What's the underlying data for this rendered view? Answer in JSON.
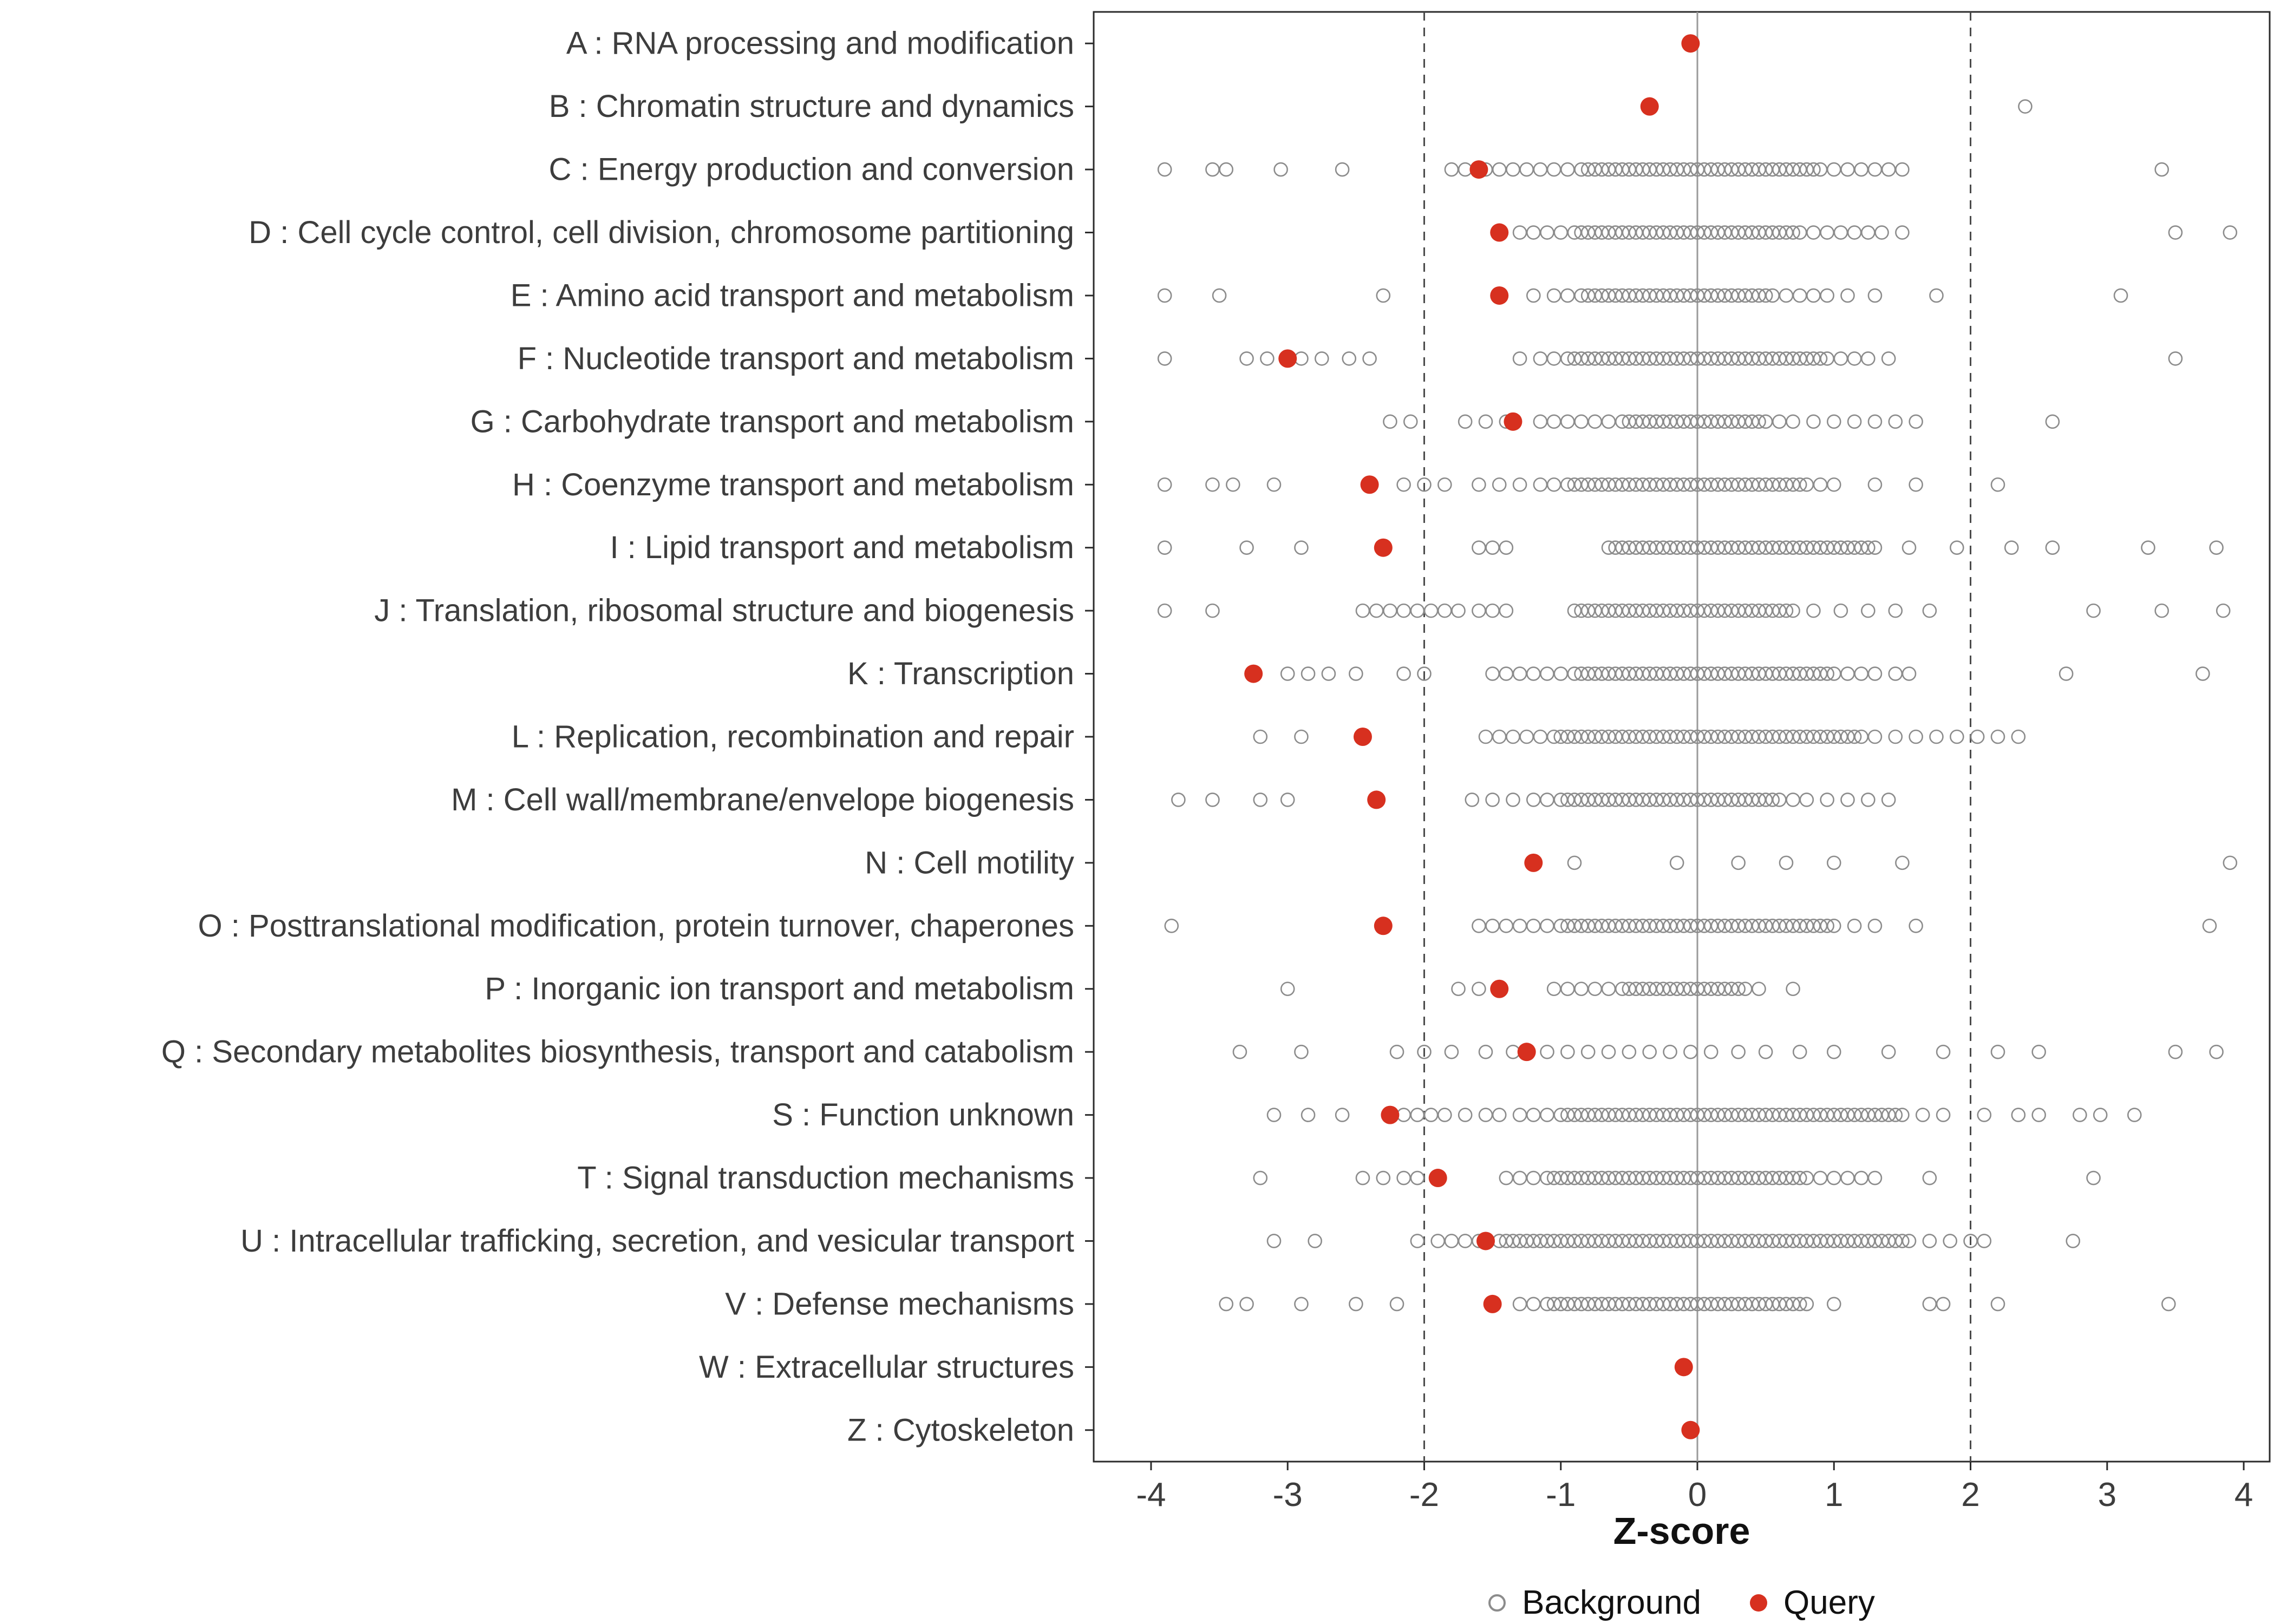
{
  "chart_data": {
    "type": "scatter",
    "variant": "strip-plot",
    "title": "",
    "xlabel": "Z-score",
    "xlim": [
      -4.42,
      4.19
    ],
    "xticks": [
      -4,
      -3,
      -2,
      -1,
      0,
      1,
      2,
      3,
      4
    ],
    "grid": false,
    "reference_lines": {
      "solid": [
        0
      ],
      "dashed": [
        -2,
        2
      ]
    },
    "colors": {
      "background_point": "#8c8c8c",
      "query_point": "#d7301f",
      "axis_text": "#3d3d3d",
      "panel_border": "#2b2b2b",
      "zero_line": "#9a9a9a",
      "dashed_line": "#4a4a4a"
    },
    "legend": {
      "position": "bottom",
      "items": [
        {
          "label": "Background",
          "marker": "open-circle",
          "color": "#8c8c8c"
        },
        {
          "label": "Query",
          "marker": "filled-circle",
          "color": "#d7301f"
        }
      ]
    },
    "categories": [
      {
        "label": "A : RNA processing and modification",
        "query": -0.05,
        "background": []
      },
      {
        "label": "B : Chromatin structure and dynamics",
        "query": -0.35,
        "background": [
          2.4
        ]
      },
      {
        "label": "C : Energy production and conversion",
        "query": -1.6,
        "background": [
          -3.9,
          -3.55,
          -3.45,
          -3.05,
          -2.6,
          -1.8,
          -1.7,
          -1.55,
          -1.45,
          -1.35,
          -1.25,
          -1.15,
          -1.05,
          -0.95,
          -0.85,
          -0.8,
          -0.75,
          -0.7,
          -0.65,
          -0.6,
          -0.55,
          -0.5,
          -0.45,
          -0.4,
          -0.35,
          -0.3,
          -0.25,
          -0.2,
          -0.15,
          -0.1,
          -0.05,
          0,
          0.05,
          0.1,
          0.15,
          0.2,
          0.25,
          0.3,
          0.35,
          0.4,
          0.45,
          0.5,
          0.55,
          0.6,
          0.65,
          0.7,
          0.75,
          0.8,
          0.85,
          0.9,
          1.0,
          1.1,
          1.2,
          1.3,
          1.4,
          1.5,
          3.4
        ]
      },
      {
        "label": "D : Cell cycle control, cell division, chromosome partitioning",
        "query": -1.45,
        "background": [
          -1.3,
          -1.2,
          -1.1,
          -1.0,
          -0.9,
          -0.85,
          -0.8,
          -0.75,
          -0.7,
          -0.65,
          -0.6,
          -0.55,
          -0.5,
          -0.45,
          -0.4,
          -0.35,
          -0.3,
          -0.25,
          -0.2,
          -0.15,
          -0.1,
          -0.05,
          0,
          0.05,
          0.1,
          0.15,
          0.2,
          0.25,
          0.3,
          0.35,
          0.4,
          0.45,
          0.5,
          0.55,
          0.6,
          0.65,
          0.7,
          0.75,
          0.85,
          0.95,
          1.05,
          1.15,
          1.25,
          1.35,
          1.5,
          3.5,
          3.9
        ]
      },
      {
        "label": "E : Amino acid transport and metabolism",
        "query": -1.45,
        "background": [
          -3.9,
          -3.5,
          -2.3,
          -1.2,
          -1.05,
          -0.95,
          -0.85,
          -0.8,
          -0.75,
          -0.7,
          -0.65,
          -0.6,
          -0.55,
          -0.5,
          -0.45,
          -0.4,
          -0.35,
          -0.3,
          -0.25,
          -0.2,
          -0.15,
          -0.1,
          -0.05,
          0,
          0.05,
          0.1,
          0.15,
          0.2,
          0.25,
          0.3,
          0.35,
          0.4,
          0.45,
          0.5,
          0.55,
          0.65,
          0.75,
          0.85,
          0.95,
          1.1,
          1.3,
          1.75,
          3.1
        ]
      },
      {
        "label": "F : Nucleotide transport and metabolism",
        "query": -3.0,
        "background": [
          -3.9,
          -3.3,
          -3.15,
          -2.9,
          -2.75,
          -2.55,
          -2.4,
          -1.3,
          -1.15,
          -1.05,
          -0.95,
          -0.9,
          -0.85,
          -0.8,
          -0.75,
          -0.7,
          -0.65,
          -0.6,
          -0.55,
          -0.5,
          -0.45,
          -0.4,
          -0.35,
          -0.3,
          -0.25,
          -0.2,
          -0.15,
          -0.1,
          -0.05,
          0,
          0.05,
          0.1,
          0.15,
          0.2,
          0.25,
          0.3,
          0.35,
          0.4,
          0.45,
          0.5,
          0.55,
          0.6,
          0.65,
          0.7,
          0.75,
          0.8,
          0.85,
          0.9,
          0.95,
          1.05,
          1.15,
          1.25,
          1.4,
          3.5
        ]
      },
      {
        "label": "G : Carbohydrate transport and metabolism",
        "query": -1.35,
        "background": [
          -2.25,
          -2.1,
          -1.7,
          -1.55,
          -1.4,
          -1.15,
          -1.05,
          -0.95,
          -0.85,
          -0.75,
          -0.65,
          -0.55,
          -0.5,
          -0.45,
          -0.4,
          -0.35,
          -0.3,
          -0.25,
          -0.2,
          -0.15,
          -0.1,
          -0.05,
          0,
          0.05,
          0.1,
          0.15,
          0.2,
          0.25,
          0.3,
          0.35,
          0.4,
          0.45,
          0.5,
          0.6,
          0.7,
          0.85,
          1.0,
          1.15,
          1.3,
          1.45,
          1.6,
          2.6
        ]
      },
      {
        "label": "H : Coenzyme transport and metabolism",
        "query": -2.4,
        "background": [
          -3.9,
          -3.55,
          -3.4,
          -3.1,
          -2.15,
          -2.0,
          -1.85,
          -1.6,
          -1.45,
          -1.3,
          -1.15,
          -1.05,
          -0.95,
          -0.9,
          -0.85,
          -0.8,
          -0.75,
          -0.7,
          -0.65,
          -0.6,
          -0.55,
          -0.5,
          -0.45,
          -0.4,
          -0.35,
          -0.3,
          -0.25,
          -0.2,
          -0.15,
          -0.1,
          -0.05,
          0,
          0.05,
          0.1,
          0.15,
          0.2,
          0.25,
          0.3,
          0.35,
          0.4,
          0.45,
          0.5,
          0.55,
          0.6,
          0.65,
          0.7,
          0.75,
          0.8,
          0.9,
          1.0,
          1.3,
          1.6,
          2.2
        ]
      },
      {
        "label": "I : Lipid transport and metabolism",
        "query": -2.3,
        "background": [
          -3.9,
          -3.3,
          -2.9,
          -1.6,
          -1.5,
          -1.4,
          -0.65,
          -0.6,
          -0.55,
          -0.5,
          -0.45,
          -0.4,
          -0.35,
          -0.3,
          -0.25,
          -0.2,
          -0.15,
          -0.1,
          -0.05,
          0,
          0.05,
          0.1,
          0.15,
          0.2,
          0.25,
          0.3,
          0.35,
          0.4,
          0.45,
          0.5,
          0.55,
          0.6,
          0.65,
          0.7,
          0.75,
          0.8,
          0.85,
          0.9,
          0.95,
          1.0,
          1.05,
          1.1,
          1.15,
          1.2,
          1.25,
          1.3,
          1.55,
          1.9,
          2.3,
          2.6,
          3.3,
          3.8
        ]
      },
      {
        "label": "J : Translation, ribosomal structure and biogenesis",
        "query": null,
        "background": [
          -3.9,
          -3.55,
          -2.45,
          -2.35,
          -2.25,
          -2.15,
          -2.05,
          -1.95,
          -1.85,
          -1.75,
          -1.6,
          -1.5,
          -1.4,
          -0.9,
          -0.85,
          -0.8,
          -0.75,
          -0.7,
          -0.65,
          -0.6,
          -0.55,
          -0.5,
          -0.45,
          -0.4,
          -0.35,
          -0.3,
          -0.25,
          -0.2,
          -0.15,
          -0.1,
          -0.05,
          0,
          0.05,
          0.1,
          0.15,
          0.2,
          0.25,
          0.3,
          0.35,
          0.4,
          0.45,
          0.5,
          0.55,
          0.6,
          0.65,
          0.7,
          0.85,
          1.05,
          1.25,
          1.45,
          1.7,
          2.9,
          3.4,
          3.85
        ]
      },
      {
        "label": "K : Transcription",
        "query": -3.25,
        "background": [
          -3.0,
          -2.85,
          -2.7,
          -2.5,
          -2.15,
          -2.0,
          -1.5,
          -1.4,
          -1.3,
          -1.2,
          -1.1,
          -1.0,
          -0.9,
          -0.85,
          -0.8,
          -0.75,
          -0.7,
          -0.65,
          -0.6,
          -0.55,
          -0.5,
          -0.45,
          -0.4,
          -0.35,
          -0.3,
          -0.25,
          -0.2,
          -0.15,
          -0.1,
          -0.05,
          0,
          0.05,
          0.1,
          0.15,
          0.2,
          0.25,
          0.3,
          0.35,
          0.4,
          0.45,
          0.5,
          0.55,
          0.6,
          0.65,
          0.7,
          0.75,
          0.8,
          0.85,
          0.9,
          0.95,
          1.0,
          1.1,
          1.2,
          1.3,
          1.45,
          1.55,
          2.7,
          3.7
        ]
      },
      {
        "label": "L : Replication, recombination and repair",
        "query": -2.45,
        "background": [
          -3.2,
          -2.9,
          -1.55,
          -1.45,
          -1.35,
          -1.25,
          -1.15,
          -1.05,
          -1.0,
          -0.95,
          -0.9,
          -0.85,
          -0.8,
          -0.75,
          -0.7,
          -0.65,
          -0.6,
          -0.55,
          -0.5,
          -0.45,
          -0.4,
          -0.35,
          -0.3,
          -0.25,
          -0.2,
          -0.15,
          -0.1,
          -0.05,
          0,
          0.05,
          0.1,
          0.15,
          0.2,
          0.25,
          0.3,
          0.35,
          0.4,
          0.45,
          0.5,
          0.55,
          0.6,
          0.65,
          0.7,
          0.75,
          0.8,
          0.85,
          0.9,
          0.95,
          1.0,
          1.05,
          1.1,
          1.15,
          1.2,
          1.3,
          1.45,
          1.6,
          1.75,
          1.9,
          2.05,
          2.2,
          2.35
        ]
      },
      {
        "label": "M : Cell wall/membrane/envelope biogenesis",
        "query": -2.35,
        "background": [
          -3.8,
          -3.55,
          -3.2,
          -3.0,
          -1.65,
          -1.5,
          -1.35,
          -1.2,
          -1.1,
          -1.0,
          -0.95,
          -0.9,
          -0.85,
          -0.8,
          -0.75,
          -0.7,
          -0.65,
          -0.6,
          -0.55,
          -0.5,
          -0.45,
          -0.4,
          -0.35,
          -0.3,
          -0.25,
          -0.2,
          -0.15,
          -0.1,
          -0.05,
          0,
          0.05,
          0.1,
          0.15,
          0.2,
          0.25,
          0.3,
          0.35,
          0.4,
          0.45,
          0.5,
          0.55,
          0.6,
          0.7,
          0.8,
          0.95,
          1.1,
          1.25,
          1.4
        ]
      },
      {
        "label": "N : Cell motility",
        "query": -1.2,
        "background": [
          -0.9,
          -0.15,
          0.3,
          0.65,
          1.0,
          1.5,
          3.9
        ]
      },
      {
        "label": "O : Posttranslational modification, protein turnover, chaperones",
        "query": -2.3,
        "background": [
          -3.85,
          -1.6,
          -1.5,
          -1.4,
          -1.3,
          -1.2,
          -1.1,
          -1.0,
          -0.95,
          -0.9,
          -0.85,
          -0.8,
          -0.75,
          -0.7,
          -0.65,
          -0.6,
          -0.55,
          -0.5,
          -0.45,
          -0.4,
          -0.35,
          -0.3,
          -0.25,
          -0.2,
          -0.15,
          -0.1,
          -0.05,
          0,
          0.05,
          0.1,
          0.15,
          0.2,
          0.25,
          0.3,
          0.35,
          0.4,
          0.45,
          0.5,
          0.55,
          0.6,
          0.65,
          0.7,
          0.75,
          0.8,
          0.85,
          0.9,
          0.95,
          1.0,
          1.15,
          1.3,
          1.6,
          3.75
        ]
      },
      {
        "label": "P : Inorganic ion transport and metabolism",
        "query": -1.45,
        "background": [
          -3.0,
          -1.75,
          -1.6,
          -1.05,
          -0.95,
          -0.85,
          -0.75,
          -0.65,
          -0.55,
          -0.5,
          -0.45,
          -0.4,
          -0.35,
          -0.3,
          -0.25,
          -0.2,
          -0.15,
          -0.1,
          -0.05,
          0,
          0.05,
          0.1,
          0.15,
          0.2,
          0.25,
          0.3,
          0.35,
          0.45,
          0.7
        ]
      },
      {
        "label": "Q : Secondary metabolites biosynthesis, transport and catabolism",
        "query": -1.25,
        "background": [
          -3.35,
          -2.9,
          -2.2,
          -2.0,
          -1.8,
          -1.55,
          -1.35,
          -1.1,
          -0.95,
          -0.8,
          -0.65,
          -0.5,
          -0.35,
          -0.2,
          -0.05,
          0.1,
          0.3,
          0.5,
          0.75,
          1.0,
          1.4,
          1.8,
          2.2,
          2.5,
          3.5,
          3.8
        ]
      },
      {
        "label": "S : Function unknown",
        "query": -2.25,
        "background": [
          -3.1,
          -2.85,
          -2.6,
          -2.15,
          -2.05,
          -1.95,
          -1.85,
          -1.7,
          -1.55,
          -1.45,
          -1.3,
          -1.2,
          -1.1,
          -1.0,
          -0.95,
          -0.9,
          -0.85,
          -0.8,
          -0.75,
          -0.7,
          -0.65,
          -0.6,
          -0.55,
          -0.5,
          -0.45,
          -0.4,
          -0.35,
          -0.3,
          -0.25,
          -0.2,
          -0.15,
          -0.1,
          -0.05,
          0,
          0.05,
          0.1,
          0.15,
          0.2,
          0.25,
          0.3,
          0.35,
          0.4,
          0.45,
          0.5,
          0.55,
          0.6,
          0.65,
          0.7,
          0.75,
          0.8,
          0.85,
          0.9,
          0.95,
          1.0,
          1.05,
          1.1,
          1.15,
          1.2,
          1.25,
          1.3,
          1.35,
          1.4,
          1.45,
          1.5,
          1.65,
          1.8,
          2.1,
          2.35,
          2.5,
          2.8,
          2.95,
          3.2
        ]
      },
      {
        "label": "T : Signal transduction mechanisms",
        "query": -1.9,
        "background": [
          -3.2,
          -2.45,
          -2.3,
          -2.15,
          -2.05,
          -1.4,
          -1.3,
          -1.2,
          -1.1,
          -1.05,
          -1.0,
          -0.95,
          -0.9,
          -0.85,
          -0.8,
          -0.75,
          -0.7,
          -0.65,
          -0.6,
          -0.55,
          -0.5,
          -0.45,
          -0.4,
          -0.35,
          -0.3,
          -0.25,
          -0.2,
          -0.15,
          -0.1,
          -0.05,
          0,
          0.05,
          0.1,
          0.15,
          0.2,
          0.25,
          0.3,
          0.35,
          0.4,
          0.45,
          0.5,
          0.55,
          0.6,
          0.65,
          0.7,
          0.75,
          0.8,
          0.9,
          1.0,
          1.1,
          1.2,
          1.3,
          1.7,
          2.9
        ]
      },
      {
        "label": "U : Intracellular trafficking, secretion, and vesicular transport",
        "query": -1.55,
        "background": [
          -3.1,
          -2.8,
          -2.05,
          -1.9,
          -1.8,
          -1.7,
          -1.6,
          -1.45,
          -1.4,
          -1.35,
          -1.3,
          -1.25,
          -1.2,
          -1.15,
          -1.1,
          -1.05,
          -1.0,
          -0.95,
          -0.9,
          -0.85,
          -0.8,
          -0.75,
          -0.7,
          -0.65,
          -0.6,
          -0.55,
          -0.5,
          -0.45,
          -0.4,
          -0.35,
          -0.3,
          -0.25,
          -0.2,
          -0.15,
          -0.1,
          -0.05,
          0,
          0.05,
          0.1,
          0.15,
          0.2,
          0.25,
          0.3,
          0.35,
          0.4,
          0.45,
          0.5,
          0.55,
          0.6,
          0.65,
          0.7,
          0.75,
          0.8,
          0.85,
          0.9,
          0.95,
          1.0,
          1.05,
          1.1,
          1.15,
          1.2,
          1.25,
          1.3,
          1.35,
          1.4,
          1.45,
          1.5,
          1.55,
          1.7,
          1.85,
          2.0,
          2.1,
          2.75
        ]
      },
      {
        "label": "V : Defense mechanisms",
        "query": -1.5,
        "background": [
          -3.45,
          -3.3,
          -2.9,
          -2.5,
          -2.2,
          -1.3,
          -1.2,
          -1.1,
          -1.05,
          -1.0,
          -0.95,
          -0.9,
          -0.85,
          -0.8,
          -0.75,
          -0.7,
          -0.65,
          -0.6,
          -0.55,
          -0.5,
          -0.45,
          -0.4,
          -0.35,
          -0.3,
          -0.25,
          -0.2,
          -0.15,
          -0.1,
          -0.05,
          0,
          0.05,
          0.1,
          0.15,
          0.2,
          0.25,
          0.3,
          0.35,
          0.4,
          0.45,
          0.5,
          0.55,
          0.6,
          0.65,
          0.7,
          0.75,
          0.8,
          1.0,
          1.7,
          1.8,
          2.2,
          3.45
        ]
      },
      {
        "label": "W : Extracellular structures",
        "query": -0.1,
        "background": []
      },
      {
        "label": "Z : Cytoskeleton",
        "query": -0.05,
        "background": []
      }
    ]
  }
}
